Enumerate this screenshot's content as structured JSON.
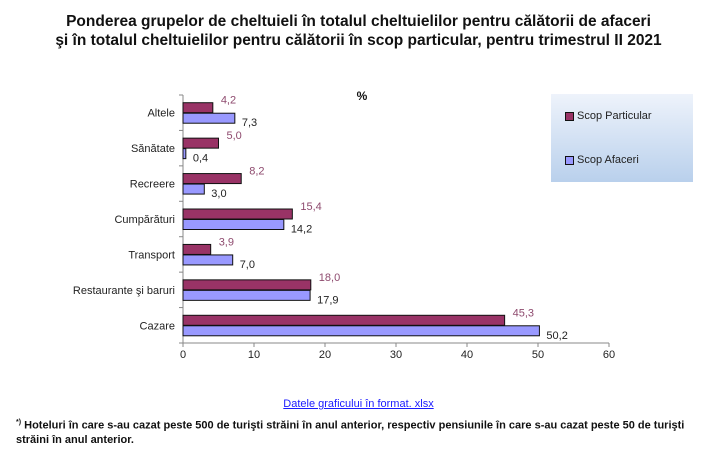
{
  "chart_data": {
    "type": "bar",
    "orientation": "horizontal",
    "title": "Ponderea grupelor de cheltuieli în totalul cheltuielilor pentru călătorii de afaceri\nşi în totalul cheltuielilor pentru călătorii în scop particular, pentru trimestrul II 2021",
    "title_line1": "Ponderea grupelor de cheltuieli în totalul cheltuielilor pentru călătorii de afaceri",
    "title_line2": "şi în totalul cheltuielilor pentru călătorii în scop particular, pentru trimestrul II 2021",
    "unit_label": "%",
    "categories": [
      "Altele",
      "Sănătate",
      "Recreere",
      "Cumpărături",
      "Transport",
      "Restaurante şi baruri",
      "Cazare"
    ],
    "series": [
      {
        "name": "Scop Particular",
        "color": "#993366",
        "label_color": "#8e4a6e",
        "values": [
          4.2,
          5.0,
          8.2,
          15.4,
          3.9,
          18.0,
          45.3
        ],
        "labels": [
          "4,2",
          "5,0",
          "8,2",
          "15,4",
          "3,9",
          "18,0",
          "45,3"
        ]
      },
      {
        "name": "Scop Afaceri",
        "color": "#9999ff",
        "label_color": "#222222",
        "values": [
          7.3,
          0.4,
          3.0,
          14.2,
          7.0,
          17.9,
          50.2
        ],
        "labels": [
          "7,3",
          "0,4",
          "3,0",
          "14,2",
          "7,0",
          "17,9",
          "50,2"
        ]
      }
    ],
    "xlim": [
      0,
      60
    ],
    "xticks": [
      "0",
      "10",
      "20",
      "30",
      "40",
      "50",
      "60"
    ],
    "grid": false,
    "legend_placement": "top-right"
  },
  "link_text": "Datele graficului în format. xlsx",
  "footnote_mark": "*)",
  "footnote": "Hoteluri în care s-au cazat peste 500 de turişti străini în anul anterior, respectiv pensiunile în care s-au cazat peste 50 de turişti străini în anul anterior."
}
